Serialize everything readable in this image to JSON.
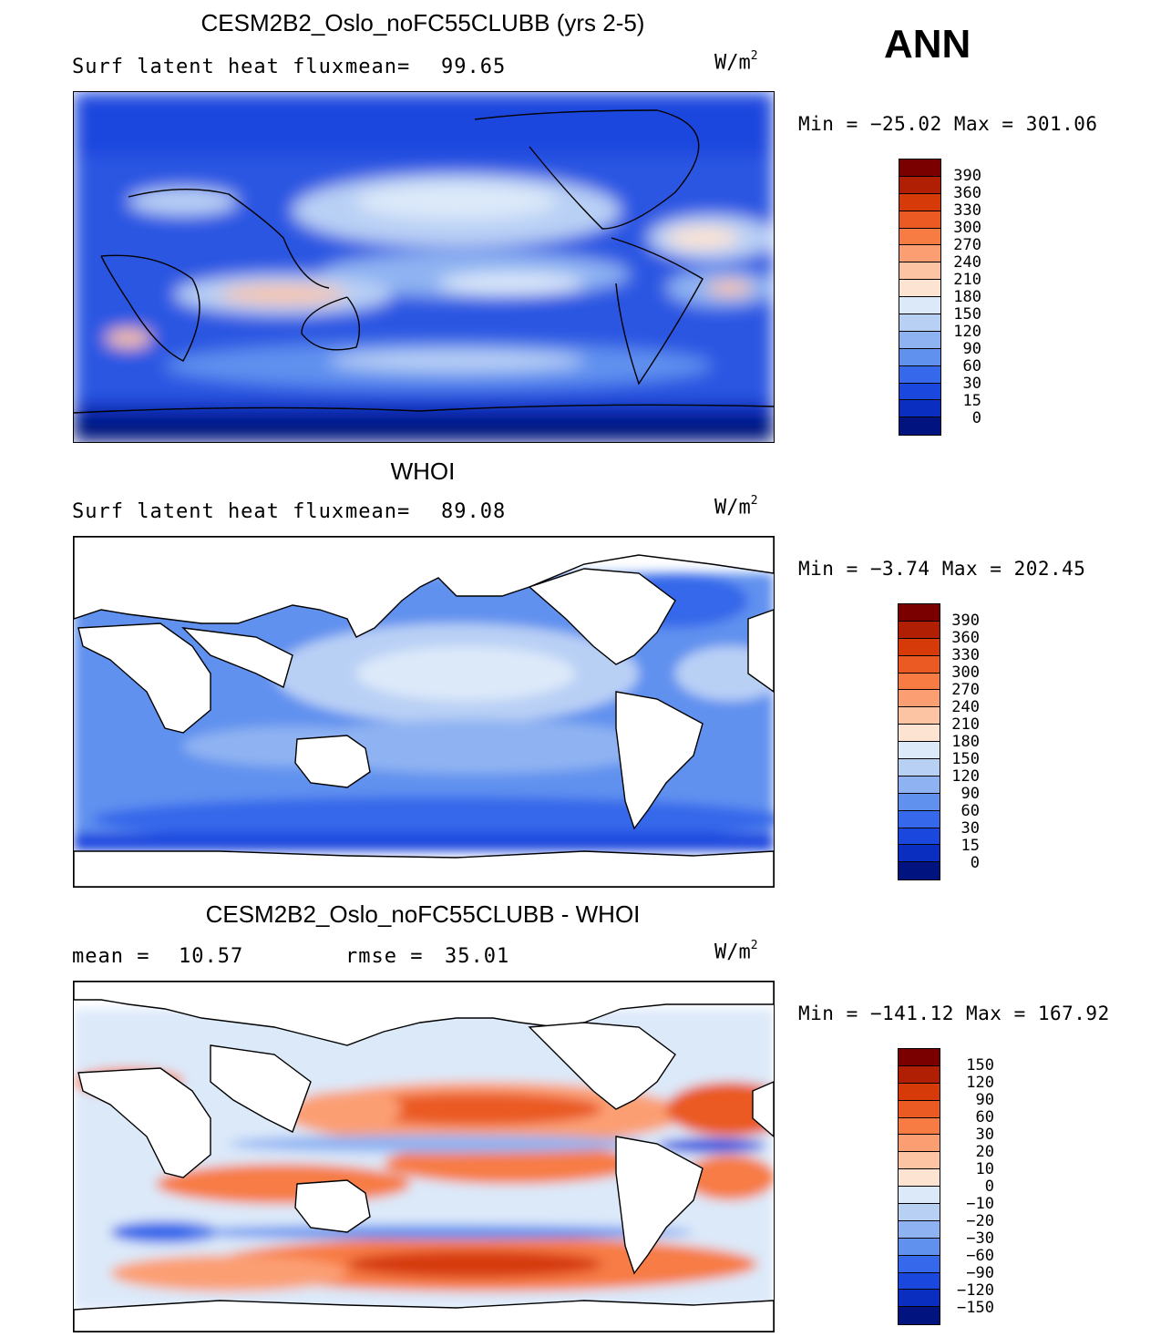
{
  "season": "ANN",
  "units_base": "W/m",
  "units_exp": "2",
  "panel1": {
    "title": "CESM2B2_Oslo_noFC55CLUBB (yrs 2-5)",
    "variable": "Surf latent heat flux",
    "mean_label": "mean=",
    "mean_value": "99.65",
    "minmax": "Min = −25.02 Max = 301.06"
  },
  "panel2": {
    "title": "WHOI",
    "variable": "Surf latent heat flux",
    "mean_label": "mean=",
    "mean_value": "89.08",
    "minmax": "Min =  −3.74 Max = 202.45"
  },
  "panel3": {
    "title": "CESM2B2_Oslo_noFC55CLUBB - WHOI",
    "mean_label": "mean =",
    "mean_value": "10.57",
    "rmse_label": "rmse =",
    "rmse_value": "35.01",
    "minmax": "Min = −141.12 Max = 167.92"
  },
  "colorbar_abs": {
    "labels": [
      "390",
      "360",
      "330",
      "300",
      "270",
      "240",
      "210",
      "180",
      "150",
      "120",
      "90",
      "60",
      "30",
      "15",
      "0"
    ],
    "colors": [
      "#7a0000",
      "#b01e04",
      "#d63a08",
      "#ea5a22",
      "#f77c44",
      "#fb9f73",
      "#fcc4a3",
      "#fde4d2",
      "#dce9f9",
      "#b9d0f5",
      "#8fb3f2",
      "#6091ef",
      "#3568ea",
      "#1a47de",
      "#0a2ec0",
      "#00137f"
    ]
  },
  "colorbar_diff": {
    "labels": [
      "150",
      "120",
      "90",
      "60",
      "30",
      "20",
      "10",
      "0",
      "−10",
      "−20",
      "−30",
      "−60",
      "−90",
      "−120",
      "−150"
    ],
    "colors": [
      "#7a0000",
      "#b01e04",
      "#d63a08",
      "#ea5a22",
      "#f77c44",
      "#fb9f73",
      "#fcc4a3",
      "#fde4d2",
      "#dce9f9",
      "#b9d0f5",
      "#8fb3f2",
      "#6091ef",
      "#3568ea",
      "#1a47de",
      "#0a2ec0",
      "#00137f"
    ]
  }
}
